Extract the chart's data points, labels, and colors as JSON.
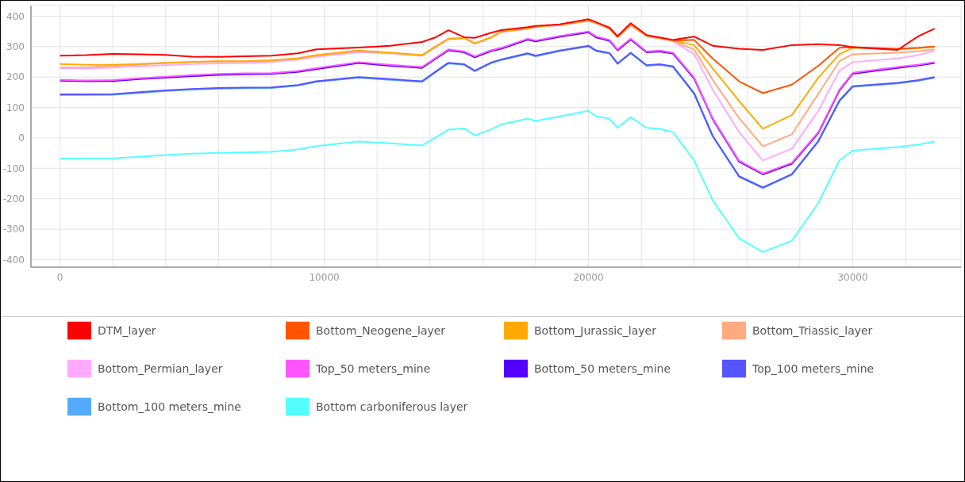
{
  "chart_data": {
    "type": "line",
    "x": [
      0,
      1000,
      2000,
      3000,
      4000,
      5000,
      6000,
      7000,
      8000,
      9000,
      9700,
      11300,
      12500,
      13700,
      14200,
      14700,
      15300,
      15700,
      16300,
      16700,
      17700,
      18000,
      18900,
      20000,
      20300,
      20800,
      21100,
      21600,
      22200,
      22700,
      23200,
      24000,
      24700,
      25700,
      26600,
      27700,
      28700,
      29500,
      30000,
      31700,
      32500,
      33100
    ],
    "series": [
      {
        "name": "DTM_layer",
        "color": "#ff0000",
        "values": [
          270,
          272,
          276,
          275,
          273,
          267,
          266,
          268,
          270,
          278,
          291,
          297,
          303,
          315,
          330,
          354,
          331,
          329,
          345,
          354,
          364,
          368,
          373,
          390,
          380,
          362,
          334,
          377,
          338,
          330,
          322,
          333,
          303,
          293,
          289,
          305,
          308,
          305,
          298,
          289,
          335,
          359
        ]
      },
      {
        "name": "Bottom_Neogene_layer",
        "color": "#ff5500",
        "values": [
          null,
          null,
          null,
          null,
          null,
          null,
          null,
          null,
          null,
          null,
          null,
          null,
          null,
          null,
          null,
          null,
          null,
          null,
          null,
          null,
          null,
          null,
          null,
          null,
          null,
          null,
          null,
          null,
          null,
          null,
          320,
          322,
          261,
          186,
          147,
          175,
          237,
          296,
          298,
          293,
          296,
          300
        ]
      },
      {
        "name": "Bottom_Jurassic_layer",
        "color": "#ffaa00",
        "values": [
          243,
          240,
          240,
          243,
          247,
          250,
          252,
          252,
          255,
          262,
          272,
          287,
          280,
          272,
          300,
          326,
          329,
          311,
          330,
          350,
          360,
          366,
          372,
          386,
          378,
          360,
          332,
          372,
          336,
          328,
          320,
          305,
          229,
          121,
          30,
          75,
          198,
          275,
          296,
          291,
          295,
          300
        ]
      },
      {
        "name": "Bottom_Triassic_layer",
        "color": "#ffaa80",
        "values": [
          231,
          232,
          236,
          241,
          246,
          249,
          251,
          251,
          254,
          261,
          271,
          286,
          279,
          271,
          299,
          325,
          328,
          310,
          329,
          349,
          359,
          365,
          371,
          385,
          377,
          359,
          331,
          371,
          335,
          327,
          319,
          290,
          191,
          65,
          -28,
          12,
          145,
          252,
          275,
          280,
          285,
          292
        ]
      },
      {
        "name": "Bottom_Permian_layer",
        "color": "#ffaaff",
        "values": [
          229,
          228,
          231,
          235,
          239,
          243,
          245,
          246,
          249,
          257,
          267,
          281,
          278,
          270,
          298,
          324,
          327,
          309,
          328,
          348,
          358,
          364,
          370,
          384,
          376,
          358,
          330,
          370,
          334,
          326,
          318,
          275,
          159,
          19,
          -74,
          -35,
          89,
          221,
          249,
          261,
          272,
          287
        ]
      },
      {
        "name": "Top_50 meters_mine",
        "color": "#ff55ff",
        "values": [
          191,
          189,
          190,
          196,
          201,
          206,
          210,
          212,
          213,
          220,
          229,
          249,
          240,
          233,
          262,
          291,
          284,
          268,
          288,
          296,
          326,
          320,
          335,
          350,
          333,
          322,
          291,
          326,
          284,
          287,
          280,
          198,
          65,
          -75,
          -117,
          -82,
          19,
          159,
          214,
          233,
          241,
          249
        ]
      },
      {
        "name": "Bottom_50 meters_mine",
        "color": "#5500ff",
        "values": [
          188,
          186,
          187,
          193,
          198,
          203,
          207,
          209,
          210,
          217,
          226,
          246,
          237,
          230,
          259,
          288,
          281,
          265,
          285,
          293,
          323,
          317,
          332,
          347,
          330,
          319,
          288,
          323,
          281,
          284,
          277,
          195,
          62,
          -78,
          -120,
          -85,
          16,
          156,
          211,
          230,
          238,
          246
        ]
      },
      {
        "name": "Top_100 meters_mine",
        "color": "#5555ff",
        "values": [
          143,
          143,
          144,
          150,
          156,
          161,
          164,
          165,
          166,
          174,
          186,
          200,
          193,
          186,
          217,
          247,
          242,
          221,
          247,
          258,
          278,
          270,
          287,
          303,
          287,
          279,
          245,
          280,
          239,
          242,
          235,
          147,
          7,
          -126,
          -163,
          -119,
          -10,
          123,
          170,
          181,
          190,
          200
        ]
      },
      {
        "name": "Bottom_100 meters_mine",
        "color": "#55aaff",
        "values": [
          141,
          141,
          142,
          148,
          154,
          159,
          162,
          163,
          164,
          172,
          184,
          198,
          191,
          184,
          215,
          245,
          240,
          219,
          245,
          256,
          276,
          268,
          285,
          301,
          285,
          277,
          243,
          278,
          237,
          240,
          233,
          145,
          5,
          -128,
          -165,
          -121,
          -12,
          121,
          168,
          179,
          188,
          198
        ]
      },
      {
        "name": "Bottom carboniferous layer",
        "color": "#55ffff",
        "values": [
          -68,
          -67,
          -67,
          -62,
          -56,
          -52,
          -49,
          -48,
          -46,
          -38,
          -27,
          -12,
          -18,
          -25,
          0,
          27,
          31,
          8,
          28,
          44,
          63,
          56,
          70,
          89,
          70,
          63,
          33,
          68,
          33,
          30,
          19,
          -74,
          -205,
          -330,
          -375,
          -338,
          -214,
          -74,
          -42,
          -30,
          -22,
          -12
        ]
      }
    ],
    "xlim": [
      -1100,
      34100
    ],
    "xticks": [
      0,
      {
        "value": 2000,
        "label": null
      },
      {
        "value": 4000,
        "label": null
      },
      {
        "value": 6000,
        "label": null
      },
      {
        "value": 8000,
        "label": null
      },
      10000,
      {
        "value": 12000,
        "label": null
      },
      {
        "value": 14000,
        "label": null
      },
      {
        "value": 16000,
        "label": null
      },
      {
        "value": 18000,
        "label": null
      },
      20000,
      {
        "value": 22000,
        "label": null
      },
      {
        "value": 24000,
        "label": null
      },
      {
        "value": 26000,
        "label": null
      },
      {
        "value": 28000,
        "label": null
      },
      30000,
      {
        "value": 32000,
        "label": null
      }
    ],
    "ylim": [
      -425,
      435
    ],
    "yticks": [
      -400,
      -300,
      -200,
      -100,
      0,
      100,
      200,
      300,
      400
    ],
    "grid": true,
    "legend": "bottom",
    "line_style": "solid"
  }
}
